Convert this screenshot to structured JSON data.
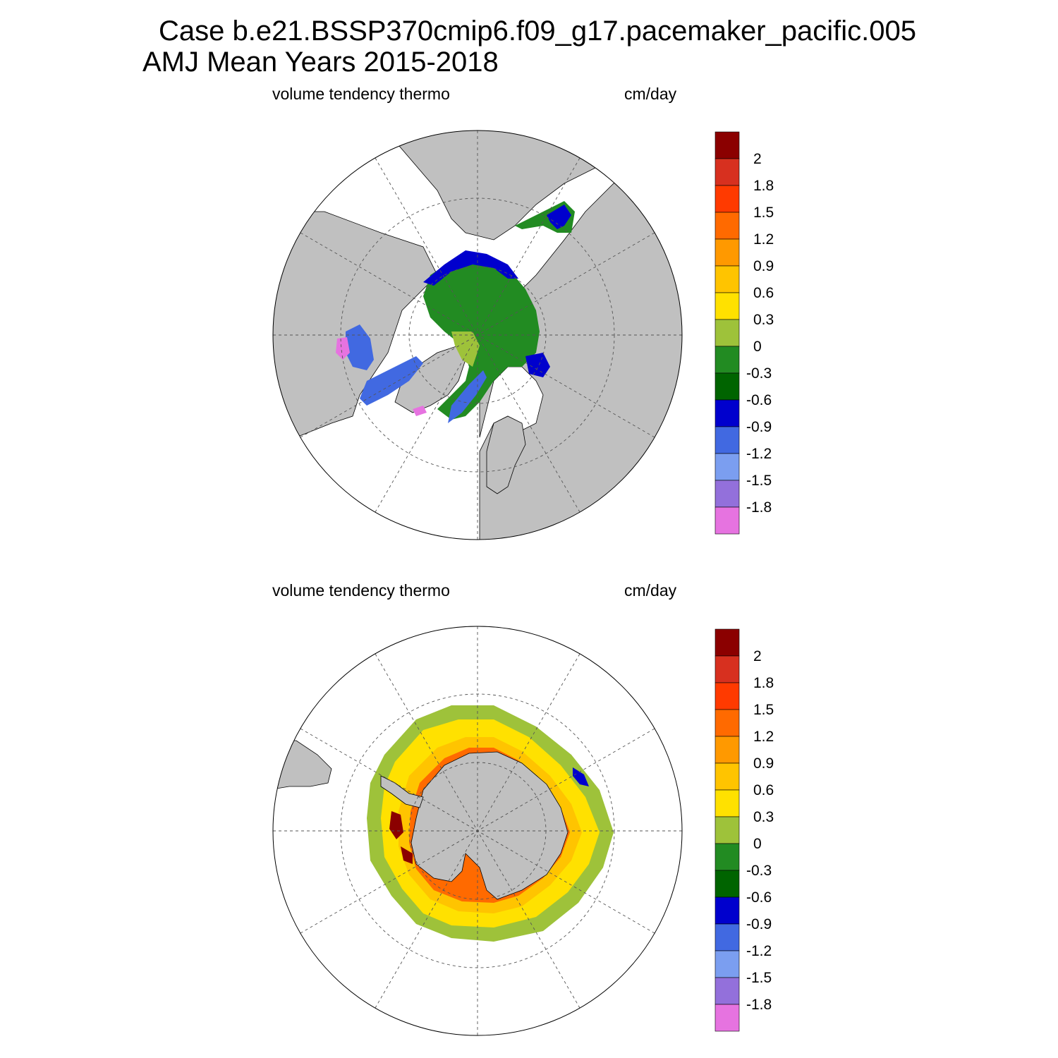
{
  "title": {
    "line1": "Case b.e21.BSSP370cmip6.f09_g17.pacemaker_pacific.005",
    "line2": "AMJ Mean   Years 2015-2018"
  },
  "panels": [
    {
      "id": "north",
      "left_label": "volume tendency thermo",
      "right_label": "cm/day",
      "hemisphere": "Northern Hemisphere polar stereographic"
    },
    {
      "id": "south",
      "left_label": "volume tendency thermo",
      "right_label": "cm/day",
      "hemisphere": "Southern Hemisphere polar stereographic"
    }
  ],
  "colorbar": {
    "tick_labels": [
      "2",
      "1.8",
      "1.5",
      "1.2",
      "0.9",
      "0.6",
      "0.3",
      "0",
      "-0.3",
      "-0.6",
      "-0.9",
      "-1.2",
      "-1.5",
      "-1.8"
    ],
    "colors": [
      "#8b0000",
      "#d7301f",
      "#ff3a00",
      "#ff6a00",
      "#ff9900",
      "#ffc400",
      "#ffe100",
      "#9ec23a",
      "#228b22",
      "#006400",
      "#0000cd",
      "#4169e1",
      "#7b9ef0",
      "#9370db",
      "#e673e0"
    ]
  },
  "colors": {
    "land": "#c0c0c0",
    "ocean": "#ffffff"
  }
}
